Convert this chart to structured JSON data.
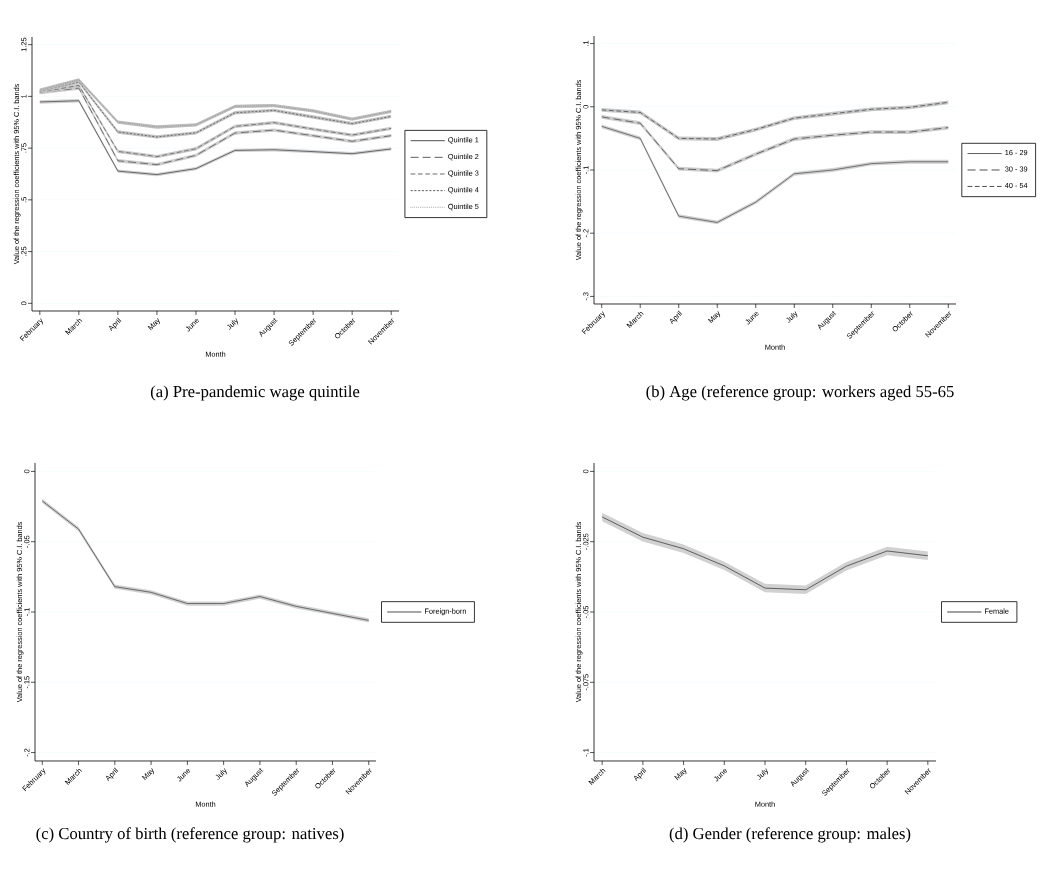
{
  "chart_data": [
    {
      "type": "line",
      "title": "(a) Pre-pandemic wage quintile",
      "xlabel": "Month",
      "ylabel": "Value of the regression coefficients with 95% C.I. bands",
      "categories": [
        "February",
        "March",
        "April",
        "May",
        "June",
        "July",
        "August",
        "September",
        "October",
        "November"
      ],
      "series": [
        {
          "name": "Quintile 1",
          "color": "#222222",
          "line_style": "solid",
          "values": [
            0.973,
            0.979,
            0.639,
            0.622,
            0.651,
            0.739,
            0.742,
            0.733,
            0.723,
            0.746
          ],
          "lower": [
            0.965,
            0.971,
            0.631,
            0.614,
            0.643,
            0.731,
            0.734,
            0.725,
            0.715,
            0.738
          ],
          "upper": [
            0.981,
            0.987,
            0.647,
            0.63,
            0.659,
            0.747,
            0.75,
            0.741,
            0.731,
            0.754
          ]
        },
        {
          "name": "Quintile 2",
          "color": "#333333",
          "line_style": "dashed",
          "values": [
            1.018,
            1.04,
            0.689,
            0.67,
            0.715,
            0.823,
            0.837,
            0.81,
            0.783,
            0.81
          ],
          "lower": [
            1.01,
            1.032,
            0.681,
            0.662,
            0.707,
            0.815,
            0.829,
            0.802,
            0.775,
            0.802
          ],
          "upper": [
            1.026,
            1.048,
            0.697,
            0.678,
            0.723,
            0.831,
            0.845,
            0.818,
            0.791,
            0.818
          ]
        },
        {
          "name": "Quintile 3",
          "color": "#444444",
          "line_style": "dashed",
          "values": [
            1.02,
            1.053,
            0.734,
            0.709,
            0.747,
            0.855,
            0.873,
            0.842,
            0.813,
            0.845
          ],
          "lower": [
            1.012,
            1.045,
            0.726,
            0.701,
            0.739,
            0.847,
            0.865,
            0.834,
            0.805,
            0.837
          ],
          "upper": [
            1.028,
            1.061,
            0.742,
            0.717,
            0.755,
            0.863,
            0.881,
            0.85,
            0.821,
            0.853
          ]
        },
        {
          "name": "Quintile 4",
          "color": "#333333",
          "line_style": "dotted",
          "values": [
            1.025,
            1.07,
            0.828,
            0.804,
            0.824,
            0.921,
            0.932,
            0.9,
            0.868,
            0.903
          ],
          "lower": [
            1.017,
            1.062,
            0.82,
            0.796,
            0.816,
            0.913,
            0.924,
            0.892,
            0.86,
            0.895
          ],
          "upper": [
            1.033,
            1.078,
            0.836,
            0.812,
            0.832,
            0.929,
            0.94,
            0.909,
            0.876,
            0.911
          ]
        },
        {
          "name": "Quintile 5",
          "color": "#6e6e6e",
          "line_style": "dotted",
          "values": [
            1.03,
            1.08,
            0.876,
            0.852,
            0.862,
            0.952,
            0.955,
            0.93,
            0.89,
            0.928
          ],
          "lower": [
            1.022,
            1.072,
            0.868,
            0.844,
            0.854,
            0.944,
            0.947,
            0.922,
            0.882,
            0.92
          ],
          "upper": [
            1.038,
            1.088,
            0.884,
            0.86,
            0.87,
            0.96,
            0.963,
            0.938,
            0.898,
            0.936
          ]
        }
      ],
      "ylim": [
        -0.037,
        1.287
      ],
      "yticks": [
        0,
        {
          "value": 0.25,
          "label": ".25"
        },
        {
          "value": 0.5,
          "label": ".5"
        },
        {
          "value": 0.75,
          "label": ".75"
        },
        1,
        1.25
      ],
      "grid": "y",
      "legend": "right"
    },
    {
      "type": "line",
      "title": "(b) Age (reference group: workers aged 55-65",
      "xlabel": "Month",
      "ylabel": "Value of the regression coefficients with 95% C.I. bands",
      "categories": [
        "February",
        "March",
        "April",
        "May",
        "June",
        "July",
        "August",
        "September",
        "October",
        "November"
      ],
      "series": [
        {
          "name": "16 - 29",
          "color": "#333333",
          "line_style": "solid",
          "values": [
            -0.031,
            -0.05,
            -0.173,
            -0.183,
            -0.151,
            -0.106,
            -0.1,
            -0.09,
            -0.087,
            -0.087
          ],
          "lower": [
            -0.034,
            -0.053,
            -0.176,
            -0.186,
            -0.154,
            -0.109,
            -0.103,
            -0.093,
            -0.09,
            -0.09
          ],
          "upper": [
            -0.028,
            -0.047,
            -0.17,
            -0.18,
            -0.148,
            -0.103,
            -0.097,
            -0.087,
            -0.084,
            -0.084
          ]
        },
        {
          "name": "30 - 39",
          "color": "#222222",
          "line_style": "dashed",
          "values": [
            -0.016,
            -0.026,
            -0.098,
            -0.101,
            -0.075,
            -0.051,
            -0.045,
            -0.04,
            -0.04,
            -0.033
          ],
          "lower": [
            -0.019,
            -0.029,
            -0.101,
            -0.104,
            -0.078,
            -0.054,
            -0.048,
            -0.043,
            -0.043,
            -0.036
          ],
          "upper": [
            -0.013,
            -0.023,
            -0.095,
            -0.098,
            -0.072,
            -0.048,
            -0.042,
            -0.037,
            -0.037,
            -0.03
          ]
        },
        {
          "name": "40 - 54",
          "color": "#222222",
          "line_style": "dashed",
          "values": [
            -0.005,
            -0.009,
            -0.05,
            -0.051,
            -0.036,
            -0.018,
            -0.011,
            -0.004,
            -0.001,
            0.007
          ],
          "lower": [
            -0.008,
            -0.012,
            -0.053,
            -0.054,
            -0.039,
            -0.021,
            -0.014,
            -0.007,
            -0.004,
            0.004
          ],
          "upper": [
            -0.002,
            -0.006,
            -0.047,
            -0.048,
            -0.033,
            -0.015,
            -0.008,
            -0.001,
            0.002,
            0.01
          ]
        }
      ],
      "ylim": [
        -0.312,
        0.112
      ],
      "yticks": [
        {
          "value": -0.3,
          "label": "-.3"
        },
        {
          "value": -0.2,
          "label": "-.2"
        },
        {
          "value": -0.1,
          "label": "-.1"
        },
        0,
        {
          "value": 0.1,
          "label": ".1"
        }
      ],
      "grid": "y",
      "legend": "right"
    },
    {
      "type": "line",
      "title": "(c) Country of birth (reference group: natives)",
      "xlabel": "Month",
      "ylabel": "Value of the regression coefficients with 95% C.I. bands",
      "categories": [
        "February",
        "March",
        "April",
        "May",
        "June",
        "July",
        "August",
        "September",
        "October",
        "November"
      ],
      "series": [
        {
          "name": "Foreign-born",
          "color": "#222222",
          "line_style": "solid",
          "values": [
            -0.021,
            -0.041,
            -0.082,
            -0.086,
            -0.094,
            -0.094,
            -0.089,
            -0.096,
            -0.101,
            -0.106
          ],
          "lower": [
            -0.0225,
            -0.0425,
            -0.0835,
            -0.0875,
            -0.0955,
            -0.0955,
            -0.0905,
            -0.0975,
            -0.1024,
            -0.1075
          ],
          "upper": [
            -0.0195,
            -0.0395,
            -0.0805,
            -0.0845,
            -0.0925,
            -0.0925,
            -0.0875,
            -0.0945,
            -0.0995,
            -0.1045
          ]
        }
      ],
      "ylim": [
        -0.206,
        0.006
      ],
      "yticks": [
        {
          "value": -0.2,
          "label": "-.2"
        },
        {
          "value": -0.15,
          "label": "-.15"
        },
        {
          "value": -0.1,
          "label": "-.1"
        },
        {
          "value": -0.05,
          "label": "-.05"
        },
        0
      ],
      "grid": "y",
      "legend": "right"
    },
    {
      "type": "line",
      "title": "(d) Gender (reference group: males)",
      "xlabel": "Month",
      "ylabel": "Value of the regression coefficients with 95% C.I. bands",
      "categories": [
        "March",
        "April",
        "May",
        "June",
        "July",
        "August",
        "September",
        "October",
        "November"
      ],
      "series": [
        {
          "name": "Female",
          "color": "#111111",
          "line_style": "solid",
          "values": [
            -0.0162,
            -0.0234,
            -0.0275,
            -0.0336,
            -0.0415,
            -0.0421,
            -0.0337,
            -0.0283,
            -0.03
          ],
          "lower": [
            -0.0177,
            -0.0249,
            -0.029,
            -0.0351,
            -0.043,
            -0.0436,
            -0.0352,
            -0.0298,
            -0.0315
          ],
          "upper": [
            -0.0147,
            -0.0219,
            -0.026,
            -0.0321,
            -0.04,
            -0.0406,
            -0.0322,
            -0.0268,
            -0.0285
          ]
        }
      ],
      "ylim": [
        -0.103,
        0.003
      ],
      "yticks": [
        {
          "value": -0.1,
          "label": "-.1"
        },
        {
          "value": -0.075,
          "label": "-.075"
        },
        {
          "value": -0.05,
          "label": "-.05"
        },
        {
          "value": -0.025,
          "label": "-.025"
        },
        0
      ],
      "grid": "y",
      "legend": "right"
    }
  ]
}
